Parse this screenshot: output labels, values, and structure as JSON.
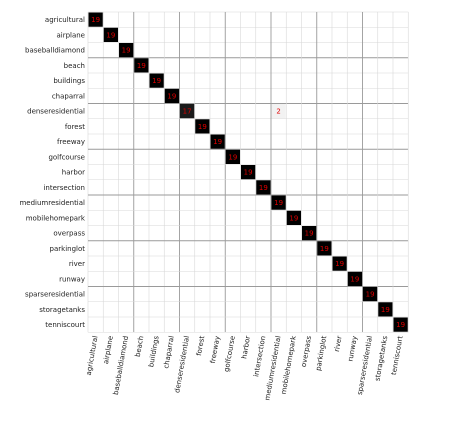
{
  "chart_data": {
    "type": "heatmap",
    "title": "",
    "xlabel": "",
    "ylabel": "",
    "grid": true,
    "labels": [
      "agricultural",
      "airplane",
      "baseballdiamond",
      "beach",
      "buildings",
      "chaparral",
      "denseresidential",
      "forest",
      "freeway",
      "golfcourse",
      "harbor",
      "intersection",
      "mediumresidential",
      "mobilehomepark",
      "overpass",
      "parkinglot",
      "river",
      "runway",
      "sparseresidential",
      "storagetanks",
      "tenniscourt"
    ],
    "diagonal": [
      19,
      19,
      19,
      19,
      19,
      19,
      17,
      19,
      19,
      19,
      19,
      19,
      19,
      19,
      19,
      19,
      19,
      19,
      19,
      19,
      19
    ],
    "off_diagonal": [
      {
        "row": "denseresidential",
        "col": "mediumresidential",
        "value": 2
      }
    ],
    "max_value": 19,
    "colors": {
      "high": "#000000",
      "low": "#ffffff",
      "text": "#e00000",
      "grid": "#d8d8d8"
    }
  }
}
